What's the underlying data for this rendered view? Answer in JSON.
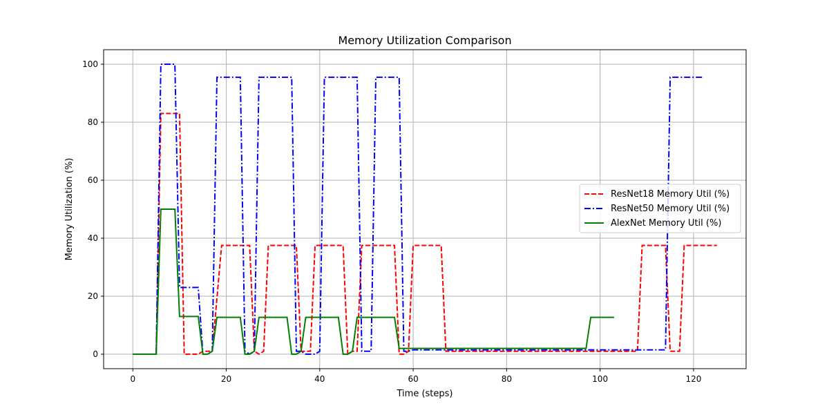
{
  "chart_data": {
    "type": "line",
    "title": "Memory Utilization Comparison",
    "xlabel": "Time (steps)",
    "ylabel": "Memory Utilization (%)",
    "xlim": [
      -6.25,
      131.25
    ],
    "ylim": [
      -5,
      105
    ],
    "xticks": [
      0,
      20,
      40,
      60,
      80,
      100,
      120
    ],
    "yticks": [
      0,
      20,
      40,
      60,
      80,
      100
    ],
    "grid": true,
    "legend_position": "center-right",
    "series": [
      {
        "name": "ResNet18 Memory Util (%)",
        "color": "#ff0000",
        "dash": "dashed",
        "points": [
          [
            0,
            0
          ],
          [
            5,
            0
          ],
          [
            6,
            83
          ],
          [
            10,
            83
          ],
          [
            11,
            0
          ],
          [
            14,
            0
          ],
          [
            15,
            1
          ],
          [
            17,
            1
          ],
          [
            19,
            37.5
          ],
          [
            25,
            37.5
          ],
          [
            26,
            1
          ],
          [
            27,
            0
          ],
          [
            28,
            1
          ],
          [
            29,
            37.5
          ],
          [
            35,
            37.5
          ],
          [
            36,
            1
          ],
          [
            38,
            1
          ],
          [
            39,
            37.5
          ],
          [
            45,
            37.5
          ],
          [
            46,
            0
          ],
          [
            47,
            1
          ],
          [
            48,
            1
          ],
          [
            49,
            37.5
          ],
          [
            56,
            37.5
          ],
          [
            57,
            0
          ],
          [
            58,
            0
          ],
          [
            59,
            1
          ],
          [
            60,
            37.5
          ],
          [
            66,
            37.5
          ],
          [
            67,
            1
          ],
          [
            108,
            1
          ],
          [
            109,
            37.5
          ],
          [
            114,
            37.5
          ],
          [
            115,
            1
          ],
          [
            117,
            1
          ],
          [
            118,
            37.5
          ],
          [
            125,
            37.5
          ]
        ]
      },
      {
        "name": "ResNet50 Memory Util (%)",
        "color": "#0000ff",
        "dash": "dashdot",
        "points": [
          [
            0,
            0
          ],
          [
            5,
            0
          ],
          [
            6,
            100
          ],
          [
            9,
            100
          ],
          [
            10,
            23
          ],
          [
            14,
            23
          ],
          [
            15,
            0
          ],
          [
            16,
            0
          ],
          [
            17,
            1
          ],
          [
            18,
            95.5
          ],
          [
            23,
            95.5
          ],
          [
            24,
            1
          ],
          [
            25,
            0
          ],
          [
            26,
            1
          ],
          [
            27,
            95.5
          ],
          [
            34,
            95.5
          ],
          [
            35,
            1
          ],
          [
            36,
            1
          ],
          [
            37,
            0
          ],
          [
            39,
            0
          ],
          [
            40,
            1
          ],
          [
            41,
            95.5
          ],
          [
            48,
            95.5
          ],
          [
            49,
            1
          ],
          [
            50,
            1
          ],
          [
            51,
            1
          ],
          [
            52,
            95.5
          ],
          [
            57,
            95.5
          ],
          [
            58,
            1
          ],
          [
            59,
            1
          ],
          [
            60,
            1.5
          ],
          [
            114,
            1.5
          ],
          [
            115,
            95.5
          ],
          [
            122,
            95.5
          ]
        ]
      },
      {
        "name": "AlexNet Memory Util (%)",
        "color": "#008000",
        "dash": "solid",
        "points": [
          [
            0,
            0
          ],
          [
            5,
            0
          ],
          [
            6,
            50
          ],
          [
            9,
            50
          ],
          [
            10,
            13
          ],
          [
            14,
            13
          ],
          [
            15,
            0
          ],
          [
            16,
            0
          ],
          [
            17,
            1
          ],
          [
            18,
            12.7
          ],
          [
            23,
            12.7
          ],
          [
            24,
            0
          ],
          [
            25,
            0
          ],
          [
            26,
            1
          ],
          [
            27,
            12.7
          ],
          [
            33,
            12.7
          ],
          [
            34,
            0
          ],
          [
            35,
            0
          ],
          [
            36,
            1
          ],
          [
            37,
            12.7
          ],
          [
            44,
            12.7
          ],
          [
            45,
            0
          ],
          [
            46,
            0
          ],
          [
            47,
            1
          ],
          [
            48,
            12.7
          ],
          [
            56,
            12.7
          ],
          [
            57,
            2
          ],
          [
            97,
            2
          ],
          [
            98,
            12.7
          ],
          [
            103,
            12.7
          ]
        ]
      }
    ]
  }
}
